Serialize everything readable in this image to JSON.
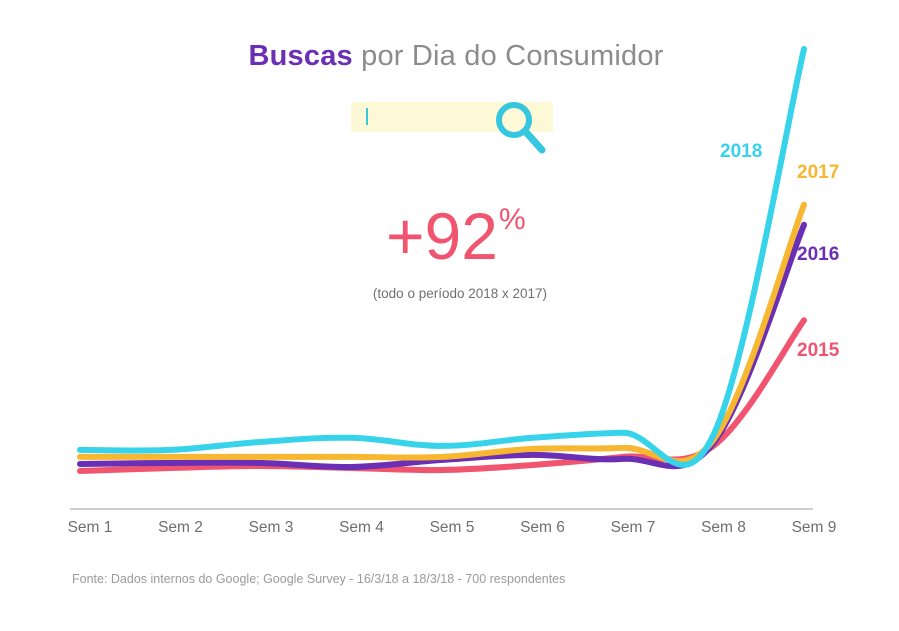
{
  "title": {
    "bold": "Buscas",
    "rest": " por Dia do Consumidor"
  },
  "stat": {
    "value": "+92",
    "unit": "%",
    "caption": "(todo o período 2018 x 2017)"
  },
  "source": "Fonte: Dados internos do Google; Google Survey - 16/3/18 a 18/3/18 - 700 respondentes",
  "icons": [
    "search-icon"
  ],
  "chart_data": {
    "type": "line",
    "categories": [
      "Sem 1",
      "Sem 2",
      "Sem 3",
      "Sem 4",
      "Sem 5",
      "Sem 6",
      "Sem 7",
      "Sem 8",
      "Sem 9"
    ],
    "grid": false,
    "legend": "labels at line ends (right)",
    "series": [
      {
        "name": "2015",
        "color": "#f0546e",
        "values": [
          0.0,
          0.3,
          0.5,
          0.3,
          0.1,
          0.6,
          1.4,
          2.5,
          15.0
        ]
      },
      {
        "name": "2016",
        "color": "#6a2fb5",
        "values": [
          0.7,
          0.8,
          0.8,
          0.4,
          1.1,
          1.6,
          1.2,
          2.8,
          24.5
        ]
      },
      {
        "name": "2017",
        "color": "#f7b731",
        "values": [
          1.4,
          1.4,
          1.4,
          1.4,
          1.4,
          2.2,
          2.3,
          3.1,
          26.5
        ]
      },
      {
        "name": "2018",
        "color": "#36d3ea",
        "values": [
          2.1,
          2.1,
          2.9,
          3.3,
          2.5,
          3.3,
          3.8,
          3.6,
          42.0
        ]
      }
    ]
  }
}
